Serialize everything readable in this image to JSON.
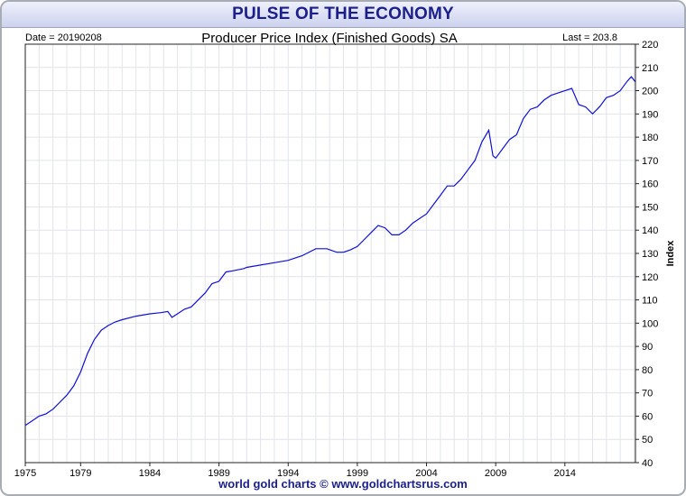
{
  "banner": {
    "title": "PULSE OF THE ECONOMY"
  },
  "footer": {
    "credit": "world gold charts © www.goldchartsrus.com"
  },
  "colors": {
    "line": "#1010d8",
    "title": "#1a1f8c",
    "grid": "#e2e4ea",
    "banner_top": "#eef0fb",
    "banner_bottom": "#cdd2ee"
  },
  "chart_data": {
    "type": "line",
    "title": "Producer Price Index (Finished Goods) SA",
    "date_label": "Date = 20190208",
    "last_label": "Last = 203.8",
    "ylabel": "Index",
    "xlabel": "",
    "grid": true,
    "xlim": [
      1975,
      2019.1
    ],
    "ylim": [
      40,
      220
    ],
    "x_ticks": [
      "1975",
      "1979",
      "1984",
      "1989",
      "1994",
      "1999",
      "2004",
      "2009",
      "2014"
    ],
    "y_ticks": [
      40,
      50,
      60,
      70,
      80,
      90,
      100,
      110,
      120,
      130,
      140,
      150,
      160,
      170,
      180,
      190,
      200,
      210,
      220
    ],
    "series": [
      {
        "x": [
          1975,
          1975.5,
          1976,
          1976.5,
          1977,
          1977.5,
          1978,
          1978.5,
          1979,
          1979.5,
          1980,
          1980.5,
          1981,
          1981.5,
          1982,
          1983,
          1984,
          1984.8,
          1985.3,
          1985.6,
          1986,
          1986.5,
          1987,
          1987.5,
          1988,
          1988.5,
          1989,
          1989.5,
          1990,
          1990.8,
          1991,
          1992,
          1993,
          1994,
          1995,
          1996,
          1996.8,
          1997.5,
          1998,
          1998.5,
          1999,
          1999.5,
          2000,
          2000.5,
          2001,
          2001.5,
          2002,
          2002.5,
          2003,
          2003.5,
          2004,
          2004.5,
          2005,
          2005.5,
          2006,
          2006.5,
          2007,
          2007.5,
          2008,
          2008.5,
          2008.8,
          2009,
          2009.5,
          2010,
          2010.5,
          2011,
          2011.5,
          2012,
          2012.5,
          2013,
          2013.5,
          2014,
          2014.5,
          2015,
          2015.5,
          2016,
          2016.5,
          2017,
          2017.5,
          2018,
          2018.5,
          2018.8,
          2019.1
        ],
        "y": [
          56,
          58,
          60,
          61,
          63,
          66,
          69,
          73,
          79,
          87,
          93,
          97,
          99,
          100.5,
          101.5,
          103,
          104,
          104.5,
          105,
          102.5,
          104,
          106,
          107,
          110,
          113,
          117,
          118,
          122,
          122.5,
          123.5,
          124,
          125,
          126,
          127,
          129,
          132,
          132,
          130.5,
          130.5,
          131.5,
          133,
          136,
          139,
          142,
          141,
          138,
          138,
          140,
          143,
          145,
          147,
          151,
          155,
          159,
          159,
          162,
          166,
          170,
          178,
          183,
          172,
          171,
          175,
          179,
          181,
          188,
          192,
          193,
          196,
          198,
          199,
          200,
          201,
          194,
          193,
          190,
          193,
          197,
          198,
          200,
          204,
          206,
          203.8
        ]
      }
    ]
  }
}
